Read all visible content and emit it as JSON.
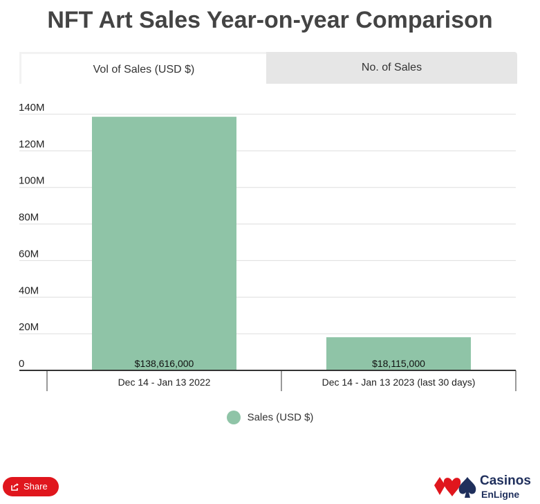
{
  "title": "NFT Art Sales Year-on-year Comparison",
  "tabs": [
    {
      "label": "Vol of Sales (USD $)",
      "active": true
    },
    {
      "label": "No. of Sales",
      "active": false
    }
  ],
  "chart_data": {
    "type": "bar",
    "title": "NFT Art Sales Year-on-year Comparison",
    "categories": [
      "Dec 14 - Jan 13 2022",
      "Dec 14 - Jan 13 2023 (last 30 days)"
    ],
    "series": [
      {
        "name": "Sales (USD $)",
        "values": [
          138616000,
          18115000
        ],
        "color": "#8fc4a7"
      }
    ],
    "data_labels": [
      "$138,616,000",
      "$18,115,000"
    ],
    "y_ticks": [
      0,
      20000000,
      40000000,
      60000000,
      80000000,
      100000000,
      120000000,
      140000000
    ],
    "y_tick_labels": [
      "0",
      "20M",
      "40M",
      "60M",
      "80M",
      "100M",
      "120M",
      "140M"
    ],
    "ylim": [
      0,
      140000000
    ],
    "grid": true,
    "legend": "bottom"
  },
  "legend": {
    "label": "Sales (USD $)"
  },
  "share": {
    "label": "Share"
  },
  "logo": {
    "line1": "Casinos",
    "line2": "EnLigne"
  },
  "colors": {
    "bar": "#8fc4a7",
    "share": "#e0161d",
    "logo_blue": "#1f2f5c"
  }
}
